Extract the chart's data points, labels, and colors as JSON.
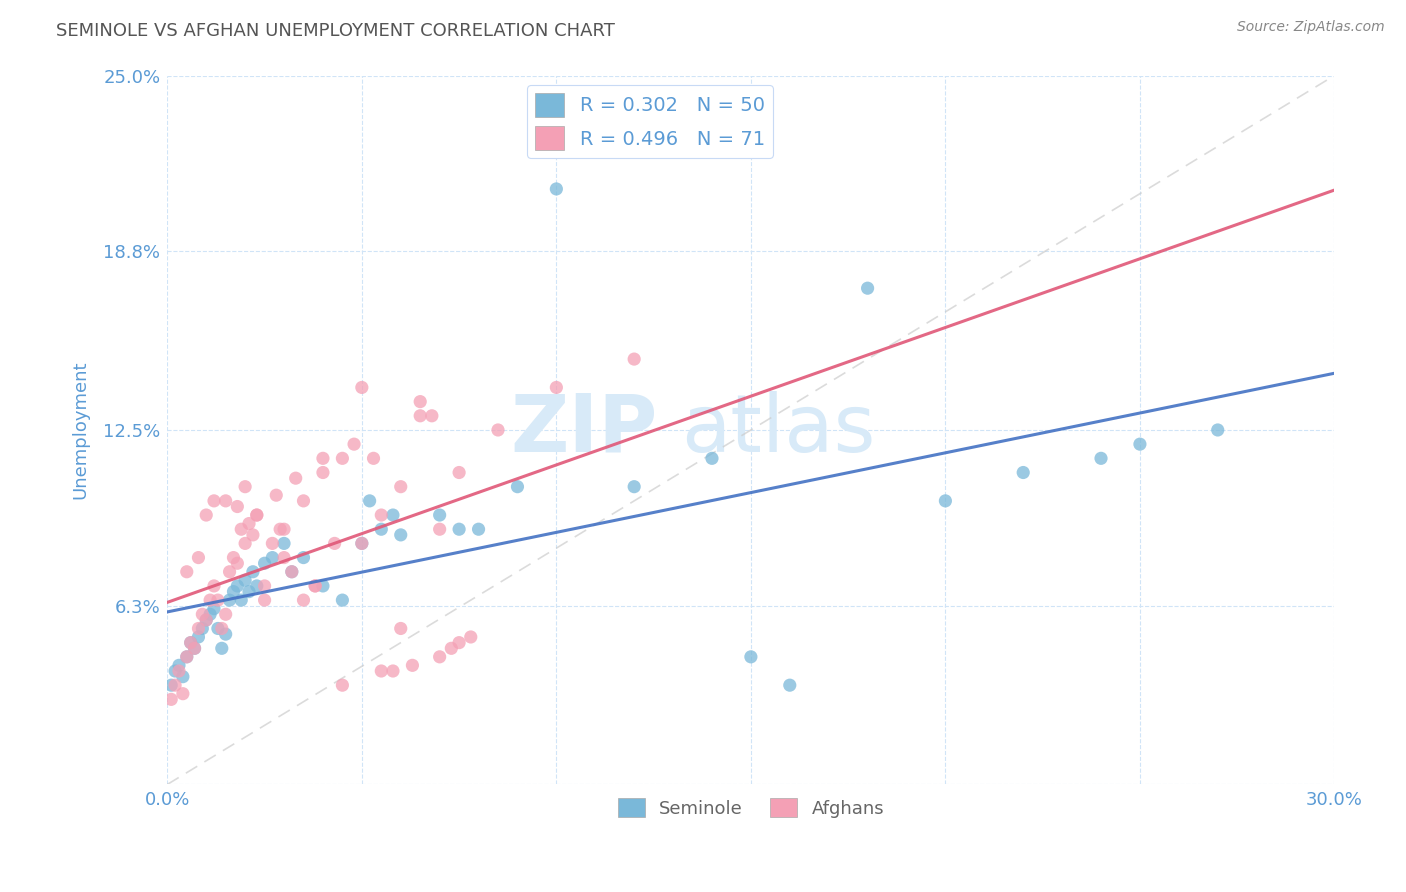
{
  "title": "SEMINOLE VS AFGHAN UNEMPLOYMENT CORRELATION CHART",
  "source_text": "Source: ZipAtlas.com",
  "ylabel": "Unemployment",
  "xlim": [
    0.0,
    30.0
  ],
  "ylim": [
    0.0,
    25.0
  ],
  "yticks": [
    0.0,
    6.3,
    12.5,
    18.8,
    25.0
  ],
  "xticks": [
    0.0,
    5.0,
    10.0,
    15.0,
    20.0,
    25.0,
    30.0
  ],
  "seminole_color": "#7ab8d9",
  "afghan_color": "#f4a0b5",
  "seminole_line_color": "#4472c4",
  "afghan_line_color": "#e05878",
  "ref_line_color": "#cccccc",
  "background_color": "#ffffff",
  "grid_color": "#d0e4f7",
  "watermark_text": "ZIPatlas",
  "watermark_color": "#d8eaf8",
  "legend_label_blue": "R = 0.302   N = 50",
  "legend_label_pink": "R = 0.496   N = 71",
  "title_color": "#555555",
  "tick_label_color": "#5b9bd5",
  "axis_label_color": "#5b9bd5",
  "seminole_x": [
    0.1,
    0.2,
    0.3,
    0.4,
    0.5,
    0.6,
    0.7,
    0.8,
    0.9,
    1.0,
    1.1,
    1.2,
    1.3,
    1.4,
    1.5,
    1.6,
    1.7,
    1.8,
    1.9,
    2.0,
    2.1,
    2.2,
    2.3,
    2.5,
    2.7,
    3.0,
    3.2,
    3.5,
    4.0,
    4.5,
    5.0,
    5.5,
    6.0,
    7.0,
    8.0,
    10.0,
    12.0,
    15.0,
    18.0,
    20.0,
    22.0,
    24.0,
    25.0,
    5.2,
    5.8,
    7.5,
    9.0,
    14.0,
    16.0,
    27.0
  ],
  "seminole_y": [
    3.5,
    4.0,
    4.2,
    3.8,
    4.5,
    5.0,
    4.8,
    5.2,
    5.5,
    5.8,
    6.0,
    6.2,
    5.5,
    4.8,
    5.3,
    6.5,
    6.8,
    7.0,
    6.5,
    7.2,
    6.8,
    7.5,
    7.0,
    7.8,
    8.0,
    8.5,
    7.5,
    8.0,
    7.0,
    6.5,
    8.5,
    9.0,
    8.8,
    9.5,
    9.0,
    21.0,
    10.5,
    4.5,
    17.5,
    10.0,
    11.0,
    11.5,
    12.0,
    10.0,
    9.5,
    9.0,
    10.5,
    11.5,
    3.5,
    12.5
  ],
  "afghan_x": [
    0.1,
    0.2,
    0.3,
    0.4,
    0.5,
    0.6,
    0.7,
    0.8,
    0.9,
    1.0,
    1.1,
    1.2,
    1.3,
    1.4,
    1.5,
    1.6,
    1.7,
    1.8,
    1.9,
    2.0,
    2.1,
    2.2,
    2.3,
    2.5,
    2.7,
    2.9,
    3.0,
    3.2,
    3.5,
    3.8,
    4.0,
    4.5,
    5.0,
    5.5,
    6.0,
    6.5,
    7.0,
    7.5,
    0.5,
    1.0,
    1.5,
    2.0,
    2.5,
    3.0,
    3.5,
    4.0,
    4.5,
    5.0,
    5.5,
    6.0,
    6.5,
    7.0,
    7.5,
    0.8,
    1.2,
    1.8,
    2.3,
    2.8,
    3.3,
    3.8,
    4.3,
    4.8,
    5.3,
    5.8,
    6.3,
    6.8,
    7.3,
    7.8,
    8.5,
    10.0,
    12.0
  ],
  "afghan_y": [
    3.0,
    3.5,
    4.0,
    3.2,
    4.5,
    5.0,
    4.8,
    5.5,
    6.0,
    5.8,
    6.5,
    7.0,
    6.5,
    5.5,
    6.0,
    7.5,
    8.0,
    7.8,
    9.0,
    8.5,
    9.2,
    8.8,
    9.5,
    7.0,
    8.5,
    9.0,
    8.0,
    7.5,
    6.5,
    7.0,
    11.0,
    11.5,
    8.5,
    9.5,
    10.5,
    13.0,
    9.0,
    11.0,
    7.5,
    9.5,
    10.0,
    10.5,
    6.5,
    9.0,
    10.0,
    11.5,
    3.5,
    14.0,
    4.0,
    5.5,
    13.5,
    4.5,
    5.0,
    8.0,
    10.0,
    9.8,
    9.5,
    10.2,
    10.8,
    7.0,
    8.5,
    12.0,
    11.5,
    4.0,
    4.2,
    13.0,
    4.8,
    5.2,
    12.5,
    14.0,
    15.0
  ]
}
